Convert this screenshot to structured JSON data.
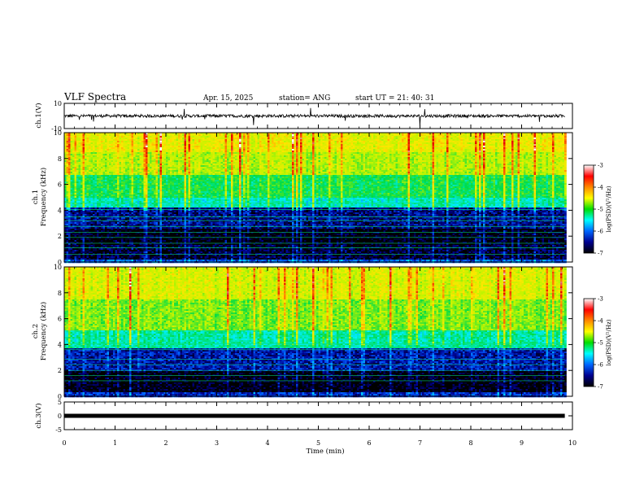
{
  "header": {
    "title": "VLF Spectra",
    "date": "Apr. 15, 2025",
    "station": "station= ANG",
    "start_ut": "start  UT =  21: 40: 31"
  },
  "colorbar": {
    "label": "log(PSD)(V²/Hz)",
    "ticks": [
      "-3",
      "-4",
      "-5",
      "-6",
      "-7"
    ],
    "colors": [
      "#ffffff",
      "#ff0000",
      "#ff8800",
      "#ffff00",
      "#00dd00",
      "#00ffff",
      "#0066ff",
      "#000090",
      "#000000"
    ]
  },
  "chart_data": [
    {
      "type": "line",
      "name": "ch1-waveform",
      "ylabel": "ch.1(V)",
      "ylim": [
        -10,
        10
      ],
      "yticks": [
        "10",
        "-10"
      ],
      "baseline": 0.0,
      "trace_color": "#000000",
      "xlim": [
        0,
        10
      ]
    },
    {
      "type": "heatmap",
      "name": "ch1-spectrogram",
      "ylabel": "ch.1\nFrequency (kHz)",
      "ylim": [
        0,
        10
      ],
      "yticks": [
        "0",
        "2",
        "4",
        "6",
        "8",
        "10"
      ],
      "xlim": [
        0,
        9.85
      ],
      "clim": [
        -7,
        -3
      ],
      "bands": [
        {
          "f": [
            0,
            0.3
          ],
          "value": -6.3
        },
        {
          "f": [
            0.3,
            1.4
          ],
          "value": -6.9
        },
        {
          "f": [
            1.4,
            2.6
          ],
          "value": -7.0
        },
        {
          "f": [
            2.6,
            4.3
          ],
          "value": -6.7
        },
        {
          "f": [
            4.3,
            5.0
          ],
          "value": -5.6
        },
        {
          "f": [
            5.0,
            6.8
          ],
          "value": -5.2
        },
        {
          "f": [
            6.8,
            8.5
          ],
          "value": -4.6
        },
        {
          "f": [
            8.5,
            10
          ],
          "value": -4.3
        }
      ],
      "tones_khz": [
        0.6,
        1.1,
        1.45,
        1.9,
        2.3,
        2.75,
        3.2,
        3.5,
        4.05,
        4.55
      ]
    },
    {
      "type": "heatmap",
      "name": "ch2-spectrogram",
      "ylabel": "ch.2\nFrequency (kHz)",
      "ylim": [
        0,
        10
      ],
      "yticks": [
        "0",
        "2",
        "4",
        "6",
        "8",
        "10"
      ],
      "xlim": [
        0,
        9.85
      ],
      "clim": [
        -7,
        -3
      ],
      "bands": [
        {
          "f": [
            0,
            0.4
          ],
          "value": -6.5
        },
        {
          "f": [
            0.4,
            2.0
          ],
          "value": -7.0
        },
        {
          "f": [
            2.0,
            3.8
          ],
          "value": -6.6
        },
        {
          "f": [
            3.8,
            5.2
          ],
          "value": -5.5
        },
        {
          "f": [
            5.2,
            7.5
          ],
          "value": -4.8
        },
        {
          "f": [
            7.5,
            10
          ],
          "value": -4.4
        }
      ],
      "tones_khz": [
        1.2,
        1.6,
        2.0,
        2.45,
        2.85,
        3.6,
        4.05
      ]
    },
    {
      "type": "line",
      "name": "ch3-waveform",
      "ylabel": "ch.3(V)",
      "ylim": [
        -5,
        5
      ],
      "yticks": [
        "5",
        "0",
        "-5"
      ],
      "baseline": 0.0,
      "trace_color": "#000000",
      "xlim": [
        0,
        10
      ]
    }
  ],
  "x_axis": {
    "label": "Time  (min)",
    "ticks": [
      "0",
      "1",
      "2",
      "3",
      "4",
      "5",
      "6",
      "7",
      "8",
      "9",
      "10"
    ],
    "xlim": [
      0,
      10
    ]
  }
}
